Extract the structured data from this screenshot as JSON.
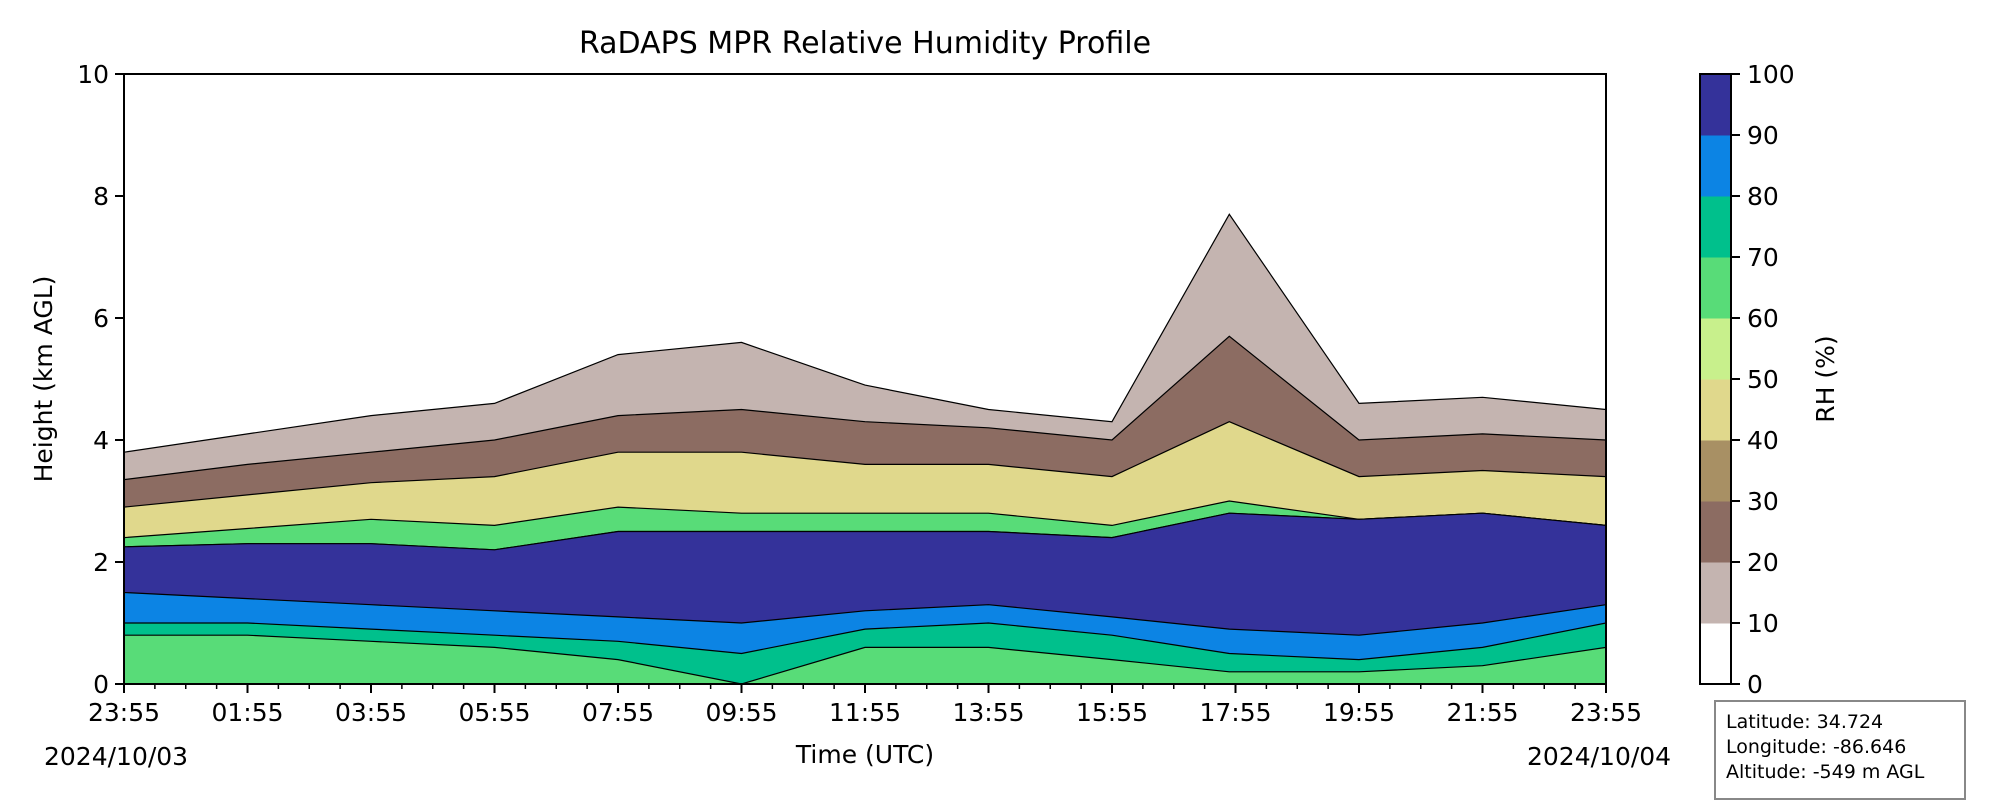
{
  "chart_data": {
    "type": "contourf",
    "title": "RaDAPS MPR Relative Humidity Profile",
    "xlabel": "Time (UTC)",
    "ylabel": "Height (km AGL)",
    "ylim": [
      0,
      10
    ],
    "yticks": [
      "0",
      "2",
      "4",
      "6",
      "8",
      "10"
    ],
    "xlim_hours": [
      0,
      24
    ],
    "xticks": [
      "23:55",
      "01:55",
      "03:55",
      "05:55",
      "07:55",
      "09:55",
      "11:55",
      "13:55",
      "15:55",
      "17:55",
      "19:55",
      "21:55",
      "23:55"
    ],
    "start_date": "2024/10/03",
    "end_date": "2024/10/04",
    "colorbar": {
      "label": "RH (%)",
      "levels": [
        0,
        10,
        20,
        30,
        40,
        50,
        60,
        70,
        80,
        90,
        100
      ],
      "tick_labels": [
        "0",
        "10",
        "20",
        "30",
        "40",
        "50",
        "60",
        "70",
        "80",
        "90",
        "100"
      ],
      "colors": [
        "#ffffff",
        "#c4b4b0",
        "#8c6c62",
        "#a89064",
        "#e0d88c",
        "#c8f08c",
        "#58dc78",
        "#00c08c",
        "#0c84e4",
        "#34329a"
      ]
    },
    "profile_heights_km": {
      "x_hours": [
        0,
        2,
        4,
        6,
        8,
        10,
        12,
        14,
        16,
        17.9,
        20,
        22,
        24
      ],
      "rh_10_top": [
        3.8,
        4.1,
        4.4,
        4.6,
        5.4,
        5.6,
        4.9,
        4.5,
        4.3,
        7.7,
        4.6,
        4.7,
        4.5
      ],
      "rh_20_top": [
        3.35,
        3.6,
        3.8,
        4.0,
        4.4,
        4.5,
        4.3,
        4.2,
        4.0,
        5.7,
        4.0,
        4.1,
        4.0
      ],
      "rh_40_top": [
        2.9,
        3.1,
        3.3,
        3.4,
        3.8,
        3.8,
        3.6,
        3.6,
        3.4,
        4.3,
        3.4,
        3.5,
        3.4
      ],
      "rh_80_top": [
        2.4,
        2.55,
        2.7,
        2.6,
        2.9,
        2.8,
        2.8,
        2.8,
        2.6,
        3.0,
        2.7,
        2.8,
        2.6
      ],
      "rh_90_top": [
        2.25,
        2.3,
        2.3,
        2.2,
        2.5,
        2.5,
        2.5,
        2.5,
        2.4,
        2.8,
        2.7,
        2.8,
        2.6
      ],
      "rh_90_bottom": [
        1.5,
        1.4,
        1.3,
        1.2,
        1.1,
        1.0,
        1.2,
        1.3,
        1.1,
        0.9,
        0.8,
        1.0,
        1.3
      ],
      "rh_80_bottom": [
        1.0,
        1.0,
        0.9,
        0.8,
        0.7,
        0.5,
        0.9,
        1.0,
        0.8,
        0.5,
        0.4,
        0.6,
        1.0
      ],
      "rh_70_bottom": [
        0.8,
        0.8,
        0.7,
        0.6,
        0.4,
        0.0,
        0.6,
        0.6,
        0.4,
        0.2,
        0.2,
        0.3,
        0.6
      ]
    }
  },
  "info_box": {
    "latitude": "Latitude: 34.724",
    "longitude": "Longitude: -86.646",
    "altitude": "Altitude: -549 m AGL"
  }
}
